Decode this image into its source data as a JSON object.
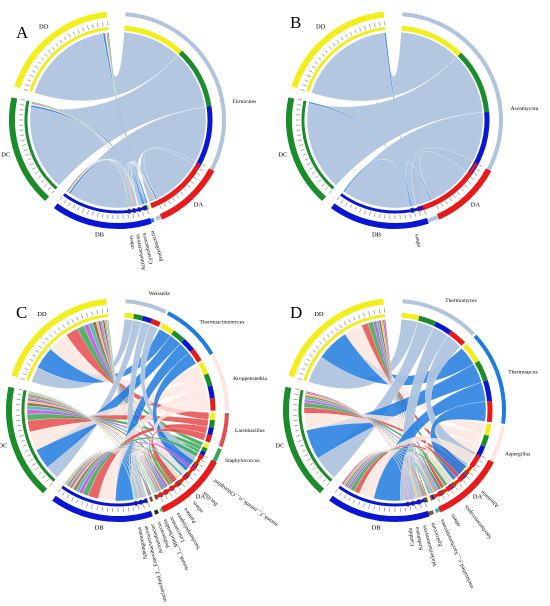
{
  "figure": {
    "panels": [
      {
        "letter": "A",
        "taxa": [
          "Firmicutes",
          "Proteobacteria",
          "Cyanobacteria",
          "Actinobacteriota",
          "others"
        ]
      },
      {
        "letter": "B",
        "taxa": [
          "Ascomycota",
          "others"
        ]
      },
      {
        "letter": "C",
        "taxa": [
          "Weissella",
          "Thermoactinomyces",
          "Kroppenstedtia",
          "Lactobacillus",
          "Staphylococcus",
          "norank_f__norank_o__Chloroplast",
          "Bacillus",
          "others",
          "Pantoea",
          "Saccharopolyspora",
          "Leuconostoc",
          "norank_f__Mitochondria",
          "Pediococcus",
          "Acinetobacter",
          "unclassified_f__Enterobacteriaceae",
          "Sphingomonas"
        ]
      },
      {
        "letter": "D",
        "taxa": [
          "Thermomyces",
          "Thermoascus",
          "Aspergillus",
          "Alternaria",
          "Saccharomycopsis",
          "others",
          "unclassified_c__Saccharomycetes",
          "Epicoccum",
          "Wickerhamomyces",
          "Kodamaea",
          "Candida"
        ]
      }
    ],
    "groups": [
      "DD",
      "DC",
      "DB",
      "DA"
    ]
  },
  "colors": {
    "DD": "#f2ee1c",
    "DC": "#1a8c2a",
    "DB": "#0a16d6",
    "DA": "#e81a1a",
    "major_taxon": "#b0c4de"
  },
  "chart_data": [
    {
      "type": "chord",
      "panel": "A",
      "sources": [
        "DD",
        "DC",
        "DB",
        "DA"
      ],
      "targets": [
        "Firmicutes",
        "Proteobacteria",
        "Cyanobacteria",
        "Actinobacteriota",
        "others"
      ],
      "target_arc_degrees": {
        "Firmicutes": 155,
        "Proteobacteria": 4,
        "Cyanobacteria": 2,
        "Actinobacteriota": 2,
        "others": 2
      }
    },
    {
      "type": "chord",
      "panel": "B",
      "sources": [
        "DD",
        "DC",
        "DB",
        "DA"
      ],
      "targets": [
        "Ascomycota",
        "others"
      ],
      "target_arc_degrees": {
        "Ascomycota": 162,
        "others": 3
      }
    },
    {
      "type": "chord",
      "panel": "C",
      "sources": [
        "DD",
        "DC",
        "DB",
        "DA"
      ],
      "targets": [
        "Weissella",
        "Thermoactinomyces",
        "Kroppenstedtia",
        "Lactobacillus",
        "Staphylococcus",
        "norank_f__norank_o__Chloroplast",
        "Bacillus",
        "others",
        "Pantoea",
        "Saccharopolyspora",
        "Leuconostoc",
        "norank_f__Mitochondria",
        "Pediococcus",
        "Acinetobacter",
        "unclassified_f__Enterobacteriaceae",
        "Sphingomonas"
      ],
      "target_arc_degrees": {
        "Weissella": 22,
        "Thermoactinomyces": 32,
        "Kroppenstedtia": 30,
        "Lactobacillus": 18,
        "Staphylococcus": 10,
        "norank_f__norank_o__Chloroplast": 7,
        "Bacillus": 6,
        "others": 5,
        "Pantoea": 3,
        "Saccharopolyspora": 3,
        "Leuconostoc": 2,
        "norank_f__Mitochondria": 2,
        "Pediococcus": 2,
        "Acinetobacter": 2,
        "unclassified_f__Enterobacteriaceae": 2,
        "Sphingomonas": 2
      }
    },
    {
      "type": "chord",
      "panel": "D",
      "sources": [
        "DD",
        "DC",
        "DB",
        "DA"
      ],
      "targets": [
        "Thermomyces",
        "Thermoascus",
        "Aspergillus",
        "Alternaria",
        "Saccharomycopsis",
        "others",
        "unclassified_c__Saccharomycetes",
        "Epicoccum",
        "Wickerhamomyces",
        "Kodamaea",
        "Candida"
      ],
      "target_arc_degrees": {
        "Thermomyces": 42,
        "Thermoascus": 50,
        "Aspergillus": 28,
        "Alternaria": 10,
        "Saccharomycopsis": 8,
        "others": 5,
        "unclassified_c__Saccharomycetes": 4,
        "Epicoccum": 3,
        "Wickerhamomyces": 3,
        "Kodamaea": 2,
        "Candida": 2
      }
    }
  ]
}
